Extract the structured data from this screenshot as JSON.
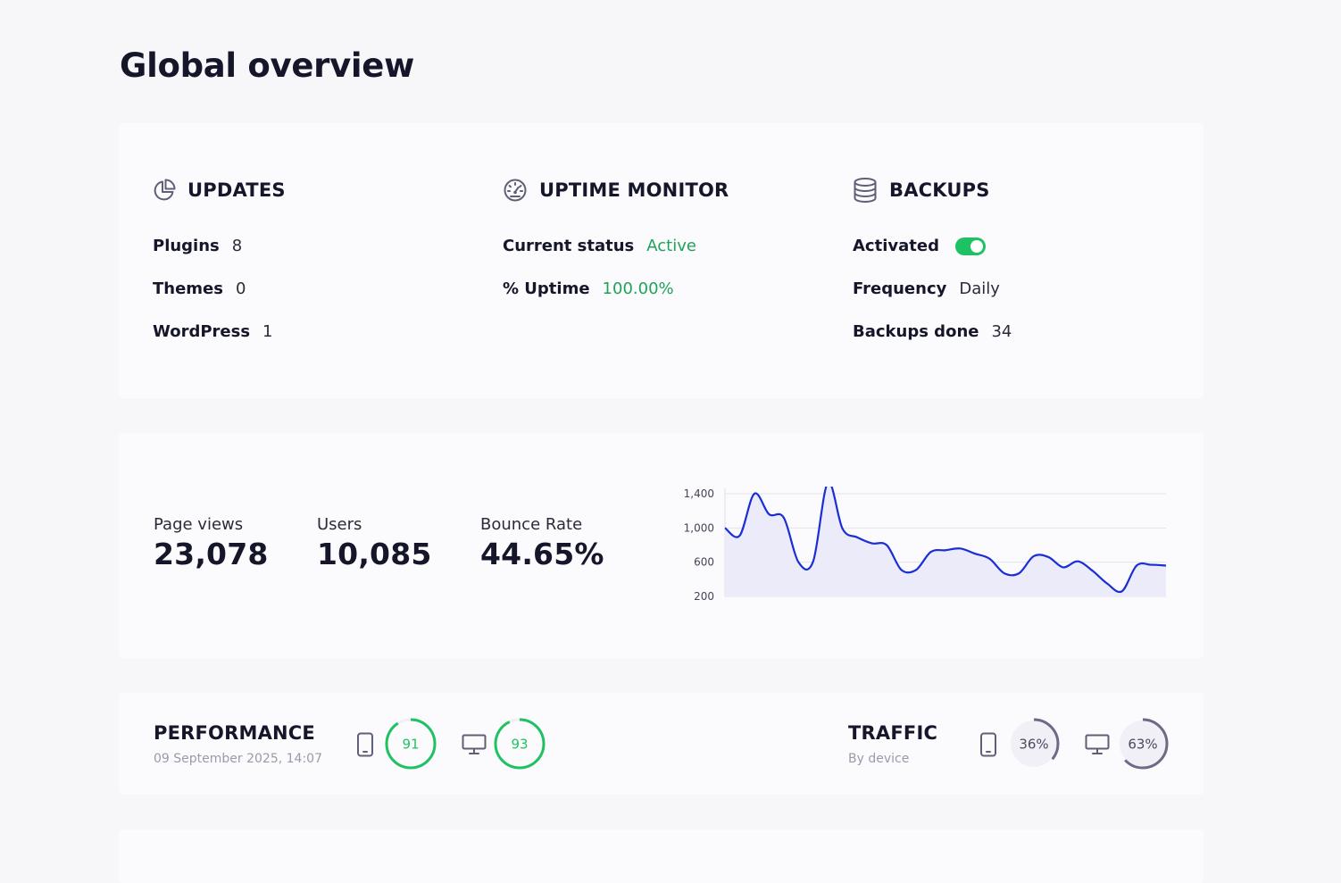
{
  "page": {
    "title": "Global overview"
  },
  "updates": {
    "title": "UPDATES",
    "icon": "pie-chart-icon",
    "items": [
      {
        "label": "Plugins",
        "value": "8"
      },
      {
        "label": "Themes",
        "value": "0"
      },
      {
        "label": "WordPress",
        "value": "1"
      }
    ]
  },
  "uptime": {
    "title": "UPTIME MONITOR",
    "icon": "speedometer-icon",
    "current_status_label": "Current status",
    "current_status_value": "Active",
    "uptime_label": "% Uptime",
    "uptime_value": "100.00%",
    "accent_color": "#1fa35a"
  },
  "backups": {
    "title": "BACKUPS",
    "icon": "database-icon",
    "activated_label": "Activated",
    "activated": true,
    "frequency_label": "Frequency",
    "frequency_value": "Daily",
    "done_label": "Backups done",
    "done_value": "34",
    "toggle_color": "#1fc262"
  },
  "analytics": {
    "metrics": [
      {
        "label": "Page views",
        "value": "23,078"
      },
      {
        "label": "Users",
        "value": "10,085"
      },
      {
        "label": "Bounce Rate",
        "value": "44.65%"
      }
    ]
  },
  "chart_data": {
    "type": "area",
    "ylim": [
      200,
      1400
    ],
    "yticks": [
      "1,400",
      "1,000",
      "600",
      "200"
    ],
    "ytick_values": [
      1400,
      1000,
      600,
      200
    ],
    "grid": true,
    "line_color": "#1a2ed6",
    "fill_color": "#ecebfa",
    "values": [
      1000,
      910,
      1400,
      1160,
      1120,
      600,
      610,
      1530,
      990,
      890,
      820,
      800,
      510,
      510,
      720,
      740,
      760,
      700,
      640,
      470,
      470,
      670,
      660,
      540,
      610,
      500,
      350,
      260,
      560,
      570,
      560
    ]
  },
  "performance": {
    "title": "PERFORMANCE",
    "date": "09 September 2025, 14:07",
    "mobile_icon": "mobile-phone-icon",
    "desktop_icon": "desktop-monitor-icon",
    "mobile_score": 91,
    "desktop_score": 93,
    "color": "#1fc262"
  },
  "traffic": {
    "title": "TRAFFIC",
    "subtitle": "By device",
    "mobile_icon": "mobile-phone-icon",
    "desktop_icon": "desktop-monitor-icon",
    "mobile_percent": 36,
    "desktop_percent": 63,
    "mobile_label": "36%",
    "desktop_label": "63%",
    "color": "#6b6b85"
  }
}
